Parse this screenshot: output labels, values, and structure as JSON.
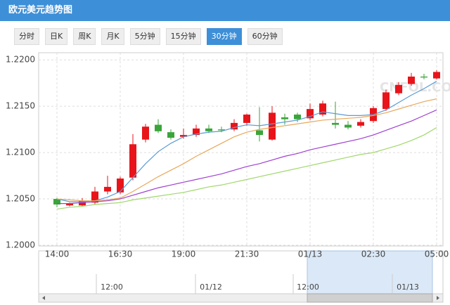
{
  "header": {
    "title": "欧元美元趋势图"
  },
  "tabs": [
    "分时",
    "日K",
    "周K",
    "月K",
    "5分钟",
    "15分钟",
    "30分钟",
    "60分钟"
  ],
  "active_tab": 6,
  "chart_data": {
    "type": "candlestick",
    "watermark": "CNFOL.COM",
    "categories": [
      "14:00",
      null,
      null,
      null,
      null,
      "16:30",
      null,
      null,
      null,
      null,
      "19:00",
      null,
      null,
      null,
      null,
      "21:30",
      null,
      null,
      null,
      null,
      "01/13",
      null,
      null,
      null,
      null,
      "02:30",
      null,
      null,
      null,
      null,
      "05:00"
    ],
    "open": [
      1.205,
      1.2043,
      1.2043,
      1.2046,
      1.2058,
      1.2057,
      1.2073,
      1.2114,
      1.213,
      1.2122,
      1.2117,
      1.2119,
      1.2126,
      1.2125,
      1.2125,
      1.2132,
      1.2124,
      1.2114,
      1.2138,
      1.2141,
      1.2137,
      1.2141,
      1.2132,
      1.213,
      1.2129,
      1.2134,
      1.2147,
      1.2164,
      1.2174,
      1.2182,
      1.218
    ],
    "high": [
      1.2051,
      1.2046,
      1.2051,
      1.2063,
      1.2075,
      1.2074,
      1.212,
      1.2131,
      1.2136,
      1.2125,
      1.2126,
      1.213,
      1.213,
      1.2128,
      1.2136,
      1.2142,
      1.2149,
      1.215,
      1.2142,
      1.2143,
      1.2153,
      1.2156,
      1.2155,
      1.2134,
      1.2136,
      1.215,
      1.2168,
      1.2176,
      1.2186,
      1.2185,
      1.2189
    ],
    "low": [
      1.2041,
      1.2042,
      1.2042,
      1.2044,
      1.2055,
      1.2055,
      1.207,
      1.2111,
      1.2121,
      1.2114,
      1.2115,
      1.2117,
      1.2121,
      1.2122,
      1.2123,
      1.2129,
      1.2112,
      1.2113,
      1.213,
      1.2133,
      1.2135,
      1.2139,
      1.2126,
      1.2125,
      1.2127,
      1.2132,
      1.2145,
      1.2162,
      1.2172,
      1.2179,
      1.2179
    ],
    "close": [
      1.2044,
      1.2045,
      1.2048,
      1.2058,
      1.2063,
      1.2072,
      1.2109,
      1.2128,
      1.2123,
      1.2116,
      1.2119,
      1.2126,
      1.2123,
      1.2124,
      1.2132,
      1.2141,
      1.2119,
      1.2143,
      1.2136,
      1.2136,
      1.2147,
      1.2153,
      1.213,
      1.2127,
      1.2133,
      1.2148,
      1.2165,
      1.2173,
      1.2182,
      1.2181,
      1.2187
    ],
    "up_color": "#e8141a",
    "down_color": "#3aa53a",
    "series": [
      {
        "color": "#5b9bd5",
        "values": [
          1.205,
          1.2047,
          1.2047,
          1.2048,
          1.2052,
          1.2058,
          1.2073,
          1.2088,
          1.2101,
          1.211,
          1.2117,
          1.212,
          1.2122,
          1.2123,
          1.2127,
          1.213,
          1.2129,
          1.2131,
          1.2133,
          1.2135,
          1.2139,
          1.2144,
          1.2142,
          1.214,
          1.214,
          1.2141,
          1.2146,
          1.2154,
          1.2162,
          1.2169,
          1.2177
        ]
      },
      {
        "color": "#e8a95c",
        "values": [
          1.205,
          1.2049,
          1.2048,
          1.2048,
          1.2049,
          1.2051,
          1.2058,
          1.2066,
          1.2074,
          1.2081,
          1.2088,
          1.2096,
          1.2103,
          1.211,
          1.2117,
          1.2122,
          1.2125,
          1.2127,
          1.2129,
          1.2131,
          1.2133,
          1.2135,
          1.2136,
          1.2137,
          1.2138,
          1.214,
          1.2143,
          1.2147,
          1.2151,
          1.2155,
          1.2158
        ]
      },
      {
        "color": "#a040d0",
        "values": [
          1.2045,
          1.2045,
          1.2046,
          1.2047,
          1.2048,
          1.205,
          1.2054,
          1.2058,
          1.2062,
          1.2065,
          1.2068,
          1.2071,
          1.2074,
          1.2077,
          1.2081,
          1.2085,
          1.2088,
          1.2092,
          1.2096,
          1.2099,
          1.2103,
          1.2106,
          1.2109,
          1.2112,
          1.2115,
          1.2119,
          1.2124,
          1.2129,
          1.2134,
          1.214,
          1.2146
        ]
      },
      {
        "color": "#9fd86a",
        "values": [
          1.2039,
          1.2041,
          1.2042,
          1.2044,
          1.2045,
          1.2046,
          1.2049,
          1.2051,
          1.2053,
          1.2055,
          1.2057,
          1.206,
          1.2063,
          1.2065,
          1.2068,
          1.2071,
          1.2074,
          1.2077,
          1.208,
          1.2083,
          1.2086,
          1.2089,
          1.2092,
          1.2095,
          1.2098,
          1.21,
          1.2104,
          1.2108,
          1.2113,
          1.2119,
          1.2127
        ]
      }
    ],
    "ylim": [
      1.2,
      1.2207
    ],
    "yticks": [
      {
        "value": 1.2,
        "label": "1.2000"
      },
      {
        "value": 1.205,
        "label": "1.2050"
      },
      {
        "value": 1.21,
        "label": "1.2100"
      },
      {
        "value": 1.215,
        "label": "1.2150"
      },
      {
        "value": 1.22,
        "label": "1.2200"
      }
    ],
    "grid": true
  },
  "navigator": {
    "labels": [
      "12:00",
      "01/12",
      "12:00",
      "01/13"
    ]
  }
}
